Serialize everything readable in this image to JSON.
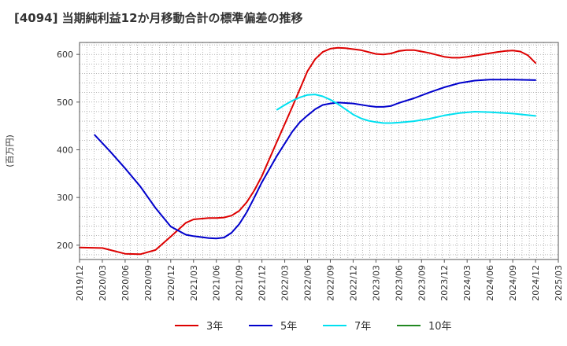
{
  "chart_data": {
    "type": "line",
    "title": "[4094]  当期純利益12か月移動合計の標準偏差の推移",
    "ylabel": "(百万円)",
    "xlabel": "",
    "ylim": [
      170,
      625
    ],
    "yticks": [
      200,
      300,
      400,
      500,
      600
    ],
    "x_ticks": [
      "2019/12",
      "2020/03",
      "2020/06",
      "2020/09",
      "2020/12",
      "2021/03",
      "2021/06",
      "2021/09",
      "2021/12",
      "2022/03",
      "2022/06",
      "2022/09",
      "2022/12",
      "2023/03",
      "2023/06",
      "2023/09",
      "2023/12",
      "2024/03",
      "2024/06",
      "2024/09",
      "2024/12",
      "2025/03"
    ],
    "grid": true,
    "legend_position": "bottom",
    "series": [
      {
        "name": "3年",
        "color": "#dd0000",
        "x": [
          "2019/12",
          "2020/03",
          "2020/06",
          "2020/08",
          "2020/10",
          "2020/12",
          "2021/02",
          "2021/03",
          "2021/05",
          "2021/06",
          "2021/07",
          "2021/08",
          "2021/09",
          "2021/10",
          "2021/11",
          "2021/12",
          "2022/02",
          "2022/04",
          "2022/06",
          "2022/07",
          "2022/08",
          "2022/09",
          "2022/10",
          "2022/11",
          "2022/12",
          "2023/01",
          "2023/03",
          "2023/04",
          "2023/05",
          "2023/06",
          "2023/07",
          "2023/08",
          "2023/09",
          "2023/10",
          "2023/11",
          "2023/12",
          "2024/01",
          "2024/02",
          "2024/03",
          "2024/05",
          "2024/07",
          "2024/08",
          "2024/09",
          "2024/10",
          "2024/11",
          "2024/12"
        ],
        "values": [
          195,
          194,
          182,
          181,
          190,
          218,
          247,
          254,
          257,
          257,
          258,
          262,
          272,
          290,
          315,
          345,
          418,
          490,
          565,
          590,
          605,
          612,
          614,
          613,
          611,
          609,
          601,
          600,
          602,
          607,
          609,
          609,
          606,
          603,
          599,
          595,
          593,
          593,
          595,
          600,
          605,
          607,
          608,
          606,
          598,
          582
        ]
      },
      {
        "name": "5年",
        "color": "#0000cc",
        "x": [
          "2020/02",
          "2020/04",
          "2020/06",
          "2020/08",
          "2020/10",
          "2020/12",
          "2021/02",
          "2021/03",
          "2021/05",
          "2021/06",
          "2021/07",
          "2021/08",
          "2021/09",
          "2021/10",
          "2021/11",
          "2021/12",
          "2022/02",
          "2022/04",
          "2022/05",
          "2022/06",
          "2022/07",
          "2022/08",
          "2022/09",
          "2022/10",
          "2022/11",
          "2022/12",
          "2023/02",
          "2023/03",
          "2023/04",
          "2023/05",
          "2023/06",
          "2023/08",
          "2023/10",
          "2023/12",
          "2024/02",
          "2024/04",
          "2024/06",
          "2024/09",
          "2024/12"
        ],
        "values": [
          431,
          397,
          361,
          323,
          278,
          239,
          222,
          219,
          215,
          214,
          216,
          226,
          244,
          269,
          300,
          332,
          388,
          438,
          458,
          472,
          485,
          494,
          497,
          499,
          498,
          497,
          492,
          490,
          490,
          492,
          498,
          508,
          520,
          531,
          540,
          545,
          547,
          547,
          546
        ]
      },
      {
        "name": "7年",
        "color": "#00e0f0",
        "x": [
          "2022/02",
          "2022/03",
          "2022/04",
          "2022/05",
          "2022/06",
          "2022/07",
          "2022/08",
          "2022/09",
          "2022/10",
          "2022/11",
          "2022/12",
          "2023/01",
          "2023/02",
          "2023/03",
          "2023/04",
          "2023/05",
          "2023/06",
          "2023/08",
          "2023/10",
          "2023/12",
          "2024/02",
          "2024/04",
          "2024/06",
          "2024/09",
          "2024/12"
        ],
        "values": [
          484,
          494,
          503,
          510,
          515,
          516,
          512,
          505,
          496,
          485,
          474,
          466,
          461,
          458,
          456,
          456,
          457,
          460,
          465,
          472,
          477,
          480,
          479,
          476,
          471
        ]
      },
      {
        "name": "10年",
        "color": "#228822",
        "x": [],
        "values": []
      }
    ]
  }
}
